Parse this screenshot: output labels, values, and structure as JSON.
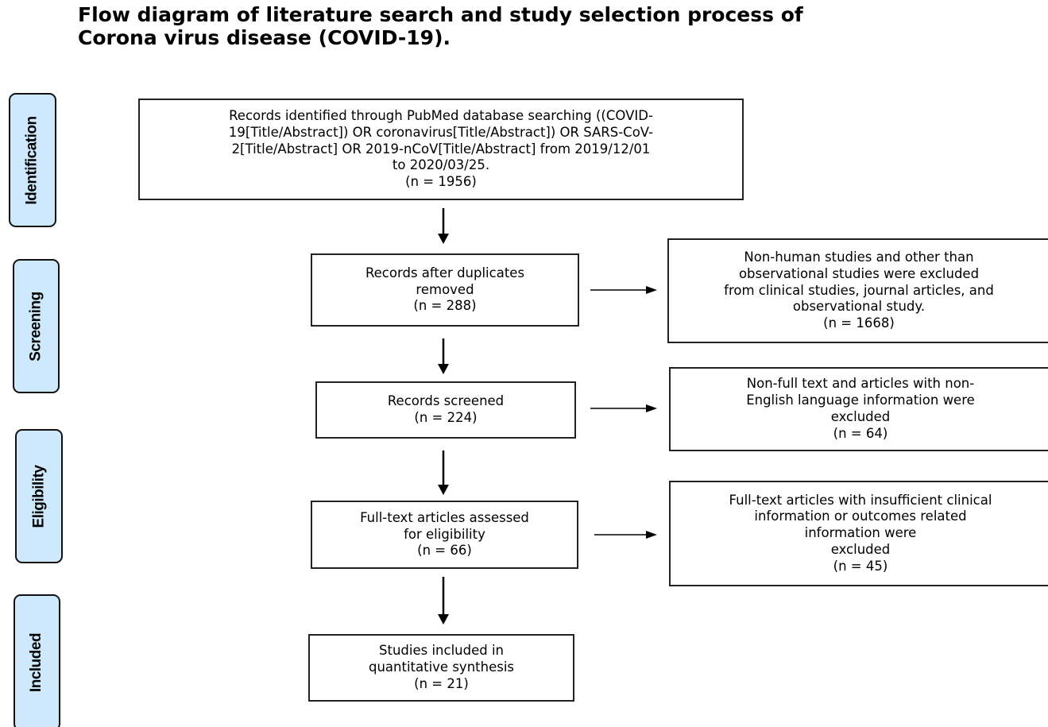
{
  "title": {
    "line1": "Flow diagram of literature search and study selection process of",
    "line2": "Corona virus disease (COVID-19)."
  },
  "stages": {
    "identification": "Identification",
    "screening": "Screening",
    "eligibility": "Eligibility",
    "included": "Included"
  },
  "boxes": {
    "identified": {
      "l1": "Records identified through PubMed database searching ((COVID-",
      "l2": "19[Title/Abstract]) OR coronavirus[Title/Abstract]) OR SARS-CoV-",
      "l3": "2[Title/Abstract] OR 2019-nCoV[Title/Abstract] from 2019/12/01",
      "l4": "to 2020/03/25.",
      "n": "(n = 1956)"
    },
    "duplicates_removed": {
      "l1": "Records after duplicates",
      "l2": "removed",
      "n": "(n = 288)"
    },
    "excluded_nonhuman": {
      "l1": "Non-human studies and other than",
      "l2": "observational studies were excluded",
      "l3": "from clinical studies, journal articles, and",
      "l4": "observational study.",
      "n": "(n = 1668)"
    },
    "screened": {
      "l1": "Records screened",
      "n": "(n = 224)"
    },
    "excluded_nonfulltext": {
      "l1": "Non-full text and articles with non-",
      "l2": "English language information were",
      "l3": "excluded",
      "n": "(n = 64)"
    },
    "fulltext_assessed": {
      "l1": "Full-text articles assessed",
      "l2": "for eligibility",
      "n": "(n = 66)"
    },
    "excluded_insufficient": {
      "l1": "Full-text articles with insufficient clinical",
      "l2": "information or outcomes related",
      "l3": "information were",
      "l4": "excluded",
      "n": "(n = 45)"
    },
    "included": {
      "l1": "Studies included in",
      "l2": "quantitative synthesis",
      "n": "(n = 21)"
    }
  }
}
